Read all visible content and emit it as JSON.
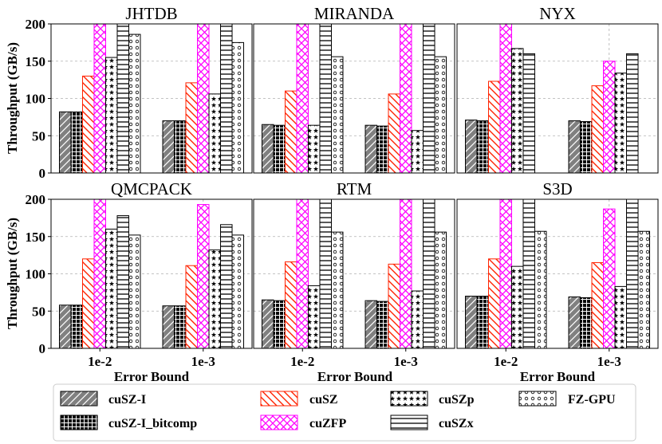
{
  "chart_data": {
    "type": "bar",
    "ylabel": "Throughput (GB/s)",
    "xlabel": "Error Bound",
    "ylim": [
      0,
      200
    ],
    "yticks": [
      "0",
      "50",
      "100",
      "150",
      "200"
    ],
    "categories": [
      "1e-2",
      "1e-3"
    ],
    "grid": true,
    "legend_position": "bottom",
    "series": [
      {
        "name": "cuSZ-I",
        "pattern": "diag",
        "color": "#808080"
      },
      {
        "name": "cuSZ-I_bitcomp",
        "pattern": "grid",
        "color": "#000000"
      },
      {
        "name": "cuSZ",
        "pattern": "backslash",
        "color": "#ff2200"
      },
      {
        "name": "cuZFP",
        "pattern": "cross",
        "color": "#ff00ff"
      },
      {
        "name": "cuSZp",
        "pattern": "stars",
        "color": "#000000"
      },
      {
        "name": "cuSZx",
        "pattern": "hlines",
        "color": "#000000"
      },
      {
        "name": "FZ-GPU",
        "pattern": "circles",
        "color": "#000000"
      }
    ],
    "panels": [
      {
        "title": "JHTDB",
        "values": [
          [
            82,
            70
          ],
          [
            82,
            70
          ],
          [
            130,
            121
          ],
          [
            205,
            205
          ],
          [
            155,
            106
          ],
          [
            205,
            205
          ],
          [
            186,
            175
          ]
        ]
      },
      {
        "title": "MIRANDA",
        "values": [
          [
            65,
            64
          ],
          [
            64,
            63
          ],
          [
            110,
            106
          ],
          [
            205,
            205
          ],
          [
            64,
            57
          ],
          [
            205,
            205
          ],
          [
            156,
            156
          ]
        ]
      },
      {
        "title": "NYX",
        "values": [
          [
            71,
            70
          ],
          [
            70,
            69
          ],
          [
            123,
            117
          ],
          [
            205,
            150
          ],
          [
            167,
            134
          ],
          [
            160,
            160
          ],
          [
            0,
            0
          ]
        ]
      },
      {
        "title": "QMCPACK",
        "values": [
          [
            58,
            57
          ],
          [
            58,
            57
          ],
          [
            120,
            111
          ],
          [
            205,
            193
          ],
          [
            160,
            132
          ],
          [
            178,
            166
          ],
          [
            152,
            152
          ]
        ]
      },
      {
        "title": "RTM",
        "values": [
          [
            65,
            64
          ],
          [
            64,
            63
          ],
          [
            116,
            113
          ],
          [
            205,
            205
          ],
          [
            84,
            77
          ],
          [
            205,
            205
          ],
          [
            156,
            156
          ]
        ]
      },
      {
        "title": "S3D",
        "values": [
          [
            70,
            69
          ],
          [
            70,
            68
          ],
          [
            120,
            115
          ],
          [
            205,
            187
          ],
          [
            110,
            83
          ],
          [
            205,
            205
          ],
          [
            157,
            157
          ]
        ]
      }
    ]
  }
}
